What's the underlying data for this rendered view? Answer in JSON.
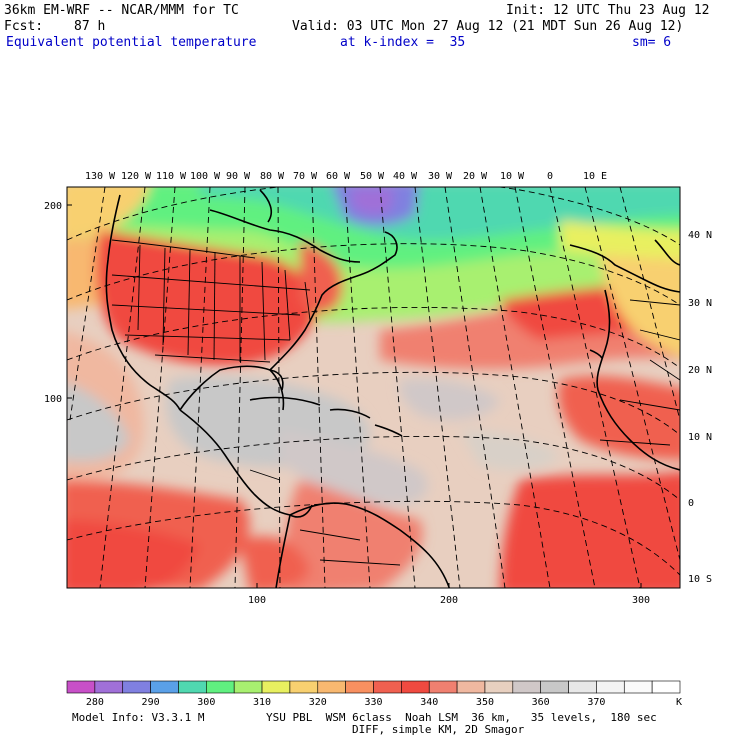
{
  "header": {
    "model_title": "36km EM-WRF -- NCAR/MMM for TC",
    "init": "Init: 12 UTC Thu 23 Aug 12",
    "fcst_label": "Fcst:",
    "fcst_value": "87 h",
    "valid": "Valid: 03 UTC Mon 27 Aug 12 (21 MDT Sun 26 Aug 12)",
    "field": "Equivalent potential temperature",
    "level": "at k-index =  35",
    "smooth": "sm= 6"
  },
  "map": {
    "lon_labels": [
      "130 W",
      "120 W",
      "110 W",
      "100 W",
      "90 W",
      "80 W",
      "70 W",
      "60 W",
      "50 W",
      "40 W",
      "30 W",
      "20 W",
      "10 W",
      "0",
      "10 E"
    ],
    "lat_labels": [
      "40 N",
      "30 N",
      "20 N",
      "10 N",
      "0",
      "10 S"
    ],
    "y_ticks": [
      "200",
      "100"
    ],
    "x_ticks": [
      "100",
      "200",
      "300"
    ]
  },
  "colorbar": {
    "labels": [
      "280",
      "290",
      "300",
      "310",
      "320",
      "330",
      "340",
      "350",
      "360",
      "370"
    ],
    "unit": "K",
    "colors": [
      "#c850c8",
      "#a070d8",
      "#8080e0",
      "#5aa0e8",
      "#50d8b0",
      "#60f080",
      "#a8f070",
      "#e8f060",
      "#f8d070",
      "#f8b870",
      "#f89060",
      "#f06050",
      "#f04a40",
      "#f08070",
      "#f0b8a0",
      "#e8d0c0",
      "#d0c8c8",
      "#c8c8c8",
      "#e8e8e8",
      "#f4f4f4",
      "#fafafa",
      "#ffffff"
    ]
  },
  "footer": {
    "line1_left": "Model Info: V3.3.1 M",
    "line1_right": "YSU PBL  WSM 6class  Noah LSM  36 km,   35 levels,  180 sec",
    "line2": "DIFF, simple KM, 2D Smagor"
  }
}
